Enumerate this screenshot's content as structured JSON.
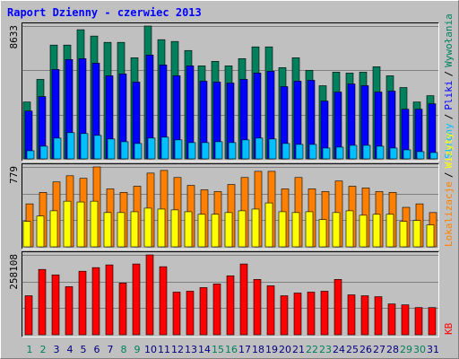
{
  "chart_data": [
    {
      "type": "bar",
      "title": "Raport Dzienny -  czerwiec 2013",
      "ylim": [
        0,
        8633
      ],
      "yticks": [
        8633
      ],
      "legend_separator": "/",
      "series": [
        {
          "name": "Wywołania",
          "color": "#00805c",
          "values": [
            3698,
            5166,
            7396,
            7396,
            8394,
            7983,
            7572,
            7572,
            6574,
            8633,
            7748,
            7631,
            7044,
            6046,
            6340,
            6046,
            6516,
            7279,
            7279,
            5929,
            6574,
            5753,
            4755,
            5635,
            5577,
            5635,
            5987,
            5400,
            4637,
            3698,
            4109
          ]
        },
        {
          "name": "Pliki",
          "color": "#0000ff",
          "values": [
            3111,
            4050,
            5811,
            6457,
            6516,
            6222,
            5400,
            5518,
            4990,
            6751,
            6105,
            5400,
            6046,
            5048,
            4990,
            4931,
            5166,
            5577,
            5694,
            4696,
            5048,
            5107,
            3757,
            4344,
            4872,
            4755,
            4344,
            4403,
            3229,
            3229,
            3581
          ]
        },
        {
          "name": "Strony",
          "color": "#00c0ff",
          "values": [
            528,
            822,
            1350,
            1702,
            1644,
            1526,
            1291,
            1115,
            998,
            1350,
            1409,
            1233,
            1057,
            1057,
            1115,
            1057,
            1233,
            1350,
            1291,
            998,
            939,
            939,
            704,
            763,
            881,
            881,
            822,
            704,
            587,
            470,
            411
          ]
        }
      ]
    },
    {
      "type": "bar",
      "ylim": [
        0,
        779
      ],
      "yticks": [
        779
      ],
      "legend_separator": "/",
      "series": [
        {
          "name": "Lokalizacje",
          "color": "#ff8000",
          "values": [
            419,
            531,
            633,
            693,
            668,
            779,
            565,
            531,
            591,
            719,
            745,
            676,
            599,
            556,
            539,
            608,
            676,
            736,
            736,
            565,
            676,
            565,
            539,
            642,
            591,
            574,
            539,
            531,
            385,
            419,
            334
          ]
        },
        {
          "name": "Wizyty",
          "color": "#ffff00",
          "values": [
            248,
            300,
            351,
            445,
            437,
            445,
            334,
            334,
            342,
            377,
            368,
            360,
            342,
            317,
            317,
            334,
            351,
            368,
            428,
            342,
            334,
            342,
            265,
            334,
            351,
            308,
            317,
            317,
            248,
            257,
            214
          ]
        }
      ]
    },
    {
      "type": "bar",
      "ylim": [
        0,
        258108
      ],
      "yticks": [
        258108
      ],
      "categories": [
        "1",
        "2",
        "3",
        "4",
        "5",
        "6",
        "7",
        "8",
        "9",
        "10",
        "11",
        "12",
        "13",
        "14",
        "15",
        "16",
        "17",
        "18",
        "19",
        "20",
        "21",
        "22",
        "23",
        "24",
        "25",
        "26",
        "27",
        "28",
        "29",
        "30",
        "31"
      ],
      "label_colors": [
        "#00805c",
        "#00805c",
        "#000080",
        "#000080",
        "#000080",
        "#000080",
        "#000080",
        "#00805c",
        "#00805c",
        "#000080",
        "#000080",
        "#000080",
        "#000080",
        "#000080",
        "#00805c",
        "#00805c",
        "#000080",
        "#000080",
        "#000080",
        "#000080",
        "#000080",
        "#00805c",
        "#00805c",
        "#000080",
        "#000080",
        "#000080",
        "#000080",
        "#000080",
        "#00805c",
        "#00805c",
        "#000080"
      ],
      "series": [
        {
          "name": "KB",
          "color": "#ff0000",
          "values": [
            126119,
            211176,
            193578,
            155449,
            205310,
            217042,
            225841,
            167181,
            228774,
            258108,
            219975,
            137851,
            140784,
            152516,
            164248,
            190645,
            228774,
            178913,
            158382,
            126119,
            134918,
            137851,
            140784,
            178913,
            129052,
            126119,
            123186,
            99722,
            96789,
            87990,
            87990
          ]
        }
      ]
    }
  ]
}
